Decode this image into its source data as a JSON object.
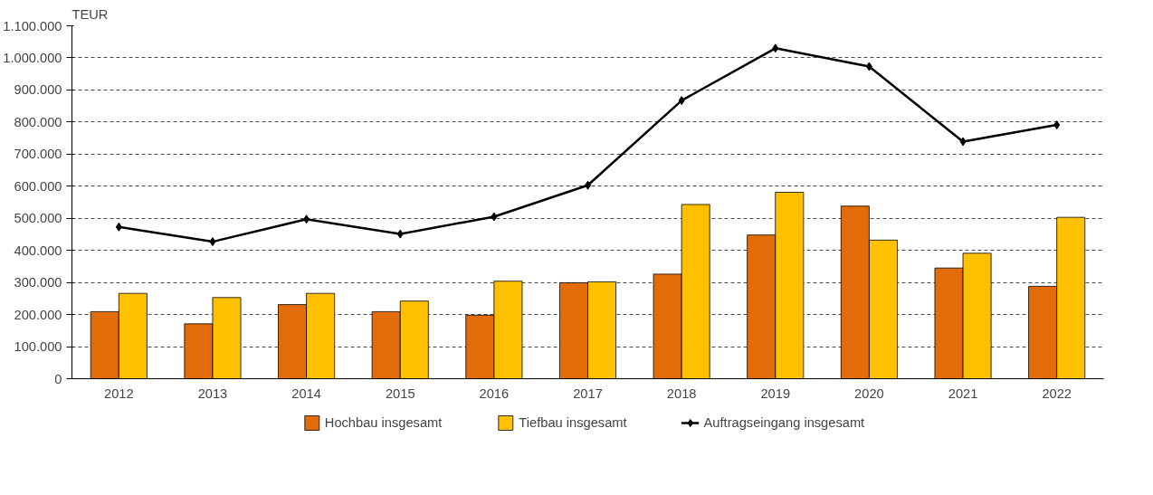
{
  "chart_data": {
    "type": "bar",
    "ylabel": "TEUR",
    "categories": [
      "2012",
      "2013",
      "2014",
      "2015",
      "2016",
      "2017",
      "2018",
      "2019",
      "2020",
      "2021",
      "2022"
    ],
    "series": [
      {
        "name": "Hochbau insgesamt",
        "color": "#e36c0a",
        "values": [
          209000,
          171000,
          231000,
          209000,
          198000,
          299000,
          326000,
          448000,
          538000,
          345000,
          288000
        ]
      },
      {
        "name": "Tiefbau insgesamt",
        "color": "#ffc000",
        "values": [
          266000,
          253000,
          266000,
          242000,
          304000,
          302000,
          543000,
          581000,
          432000,
          391000,
          503000
        ]
      },
      {
        "name": "Auftragseingang insgesamt",
        "type": "line",
        "color": "#000000",
        "marker": "diamond",
        "values": [
          473000,
          427000,
          497000,
          451000,
          505000,
          603000,
          867000,
          1030000,
          973000,
          739000,
          791000
        ]
      }
    ],
    "ylim": [
      0,
      1100000
    ],
    "yticks": [
      0,
      {
        "value": 100000,
        "label": "100.000"
      },
      {
        "value": 200000,
        "label": "200.000"
      },
      {
        "value": 300000,
        "label": "300.000"
      },
      {
        "value": 400000,
        "label": "400.000"
      },
      {
        "value": 500000,
        "label": "500.000"
      },
      {
        "value": 600000,
        "label": "600.000"
      },
      {
        "value": 700000,
        "label": "700.000"
      },
      {
        "value": 800000,
        "label": "800.000"
      },
      {
        "value": 900000,
        "label": "900.000"
      },
      {
        "value": 1000000,
        "label": "1.000.000"
      },
      {
        "value": 1100000,
        "label": "1.100.000"
      }
    ],
    "grid": "y",
    "legend": "bottom"
  }
}
